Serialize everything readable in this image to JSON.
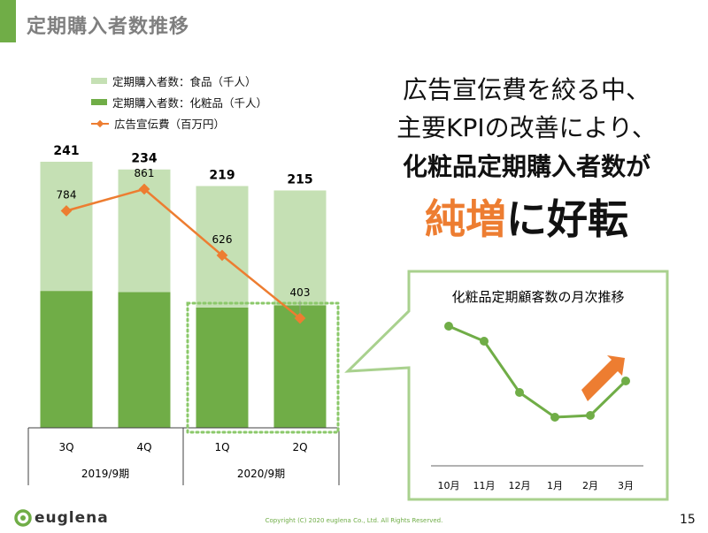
{
  "title": "定期購入者数推移",
  "legend": {
    "food": "定期購入者数：食品（千人）",
    "cosmetics": "定期購入者数：化粧品（千人）",
    "ad": "広告宣伝費（百万円）"
  },
  "message": {
    "line1": "広告宣伝費を絞る中、",
    "line2": "主要KPIの改善により、",
    "line3": "化粧品定期購入者数が",
    "line4_highlight": "純増",
    "line4_rest": "に好転"
  },
  "colors": {
    "food": "#c5e0b4",
    "cosmetics": "#70ad47",
    "ad": "#ed7d31",
    "callout": "#a9d18e",
    "accent": "#70ad47"
  },
  "chart_data": [
    {
      "type": "bar",
      "stacked": true,
      "categories": [
        "3Q",
        "4Q",
        "1Q",
        "2Q"
      ],
      "groups": [
        {
          "label": "2019/9期",
          "categories": [
            "3Q",
            "4Q"
          ]
        },
        {
          "label": "2020/9期",
          "categories": [
            "1Q",
            "2Q"
          ]
        }
      ],
      "totals": [
        241,
        234,
        219,
        215
      ],
      "series": [
        {
          "name": "定期購入者数：化粧品（千人）",
          "values": [
            124,
            123,
            109,
            111
          ]
        },
        {
          "name": "定期購入者数：食品（千人）",
          "values": [
            117,
            111,
            110,
            104
          ]
        }
      ],
      "line_series": {
        "name": "広告宣伝費（百万円）",
        "values": [
          784,
          861,
          626,
          403
        ]
      },
      "legend_position": "top",
      "highlight": [
        "1Q",
        "2Q"
      ]
    },
    {
      "type": "line",
      "title": "化粧品定期顧客数の月次推移",
      "categories": [
        "10月",
        "11月",
        "12月",
        "1月",
        "2月",
        "3月"
      ],
      "values_relative_index": [
        158,
        141,
        83,
        55,
        57,
        96
      ],
      "annotation": "up-arrow"
    }
  ],
  "footer": {
    "brand": "euglena",
    "copyright": "Copyright (C) 2020 euglena Co., Ltd. All Rights Reserved.",
    "page": "15"
  }
}
